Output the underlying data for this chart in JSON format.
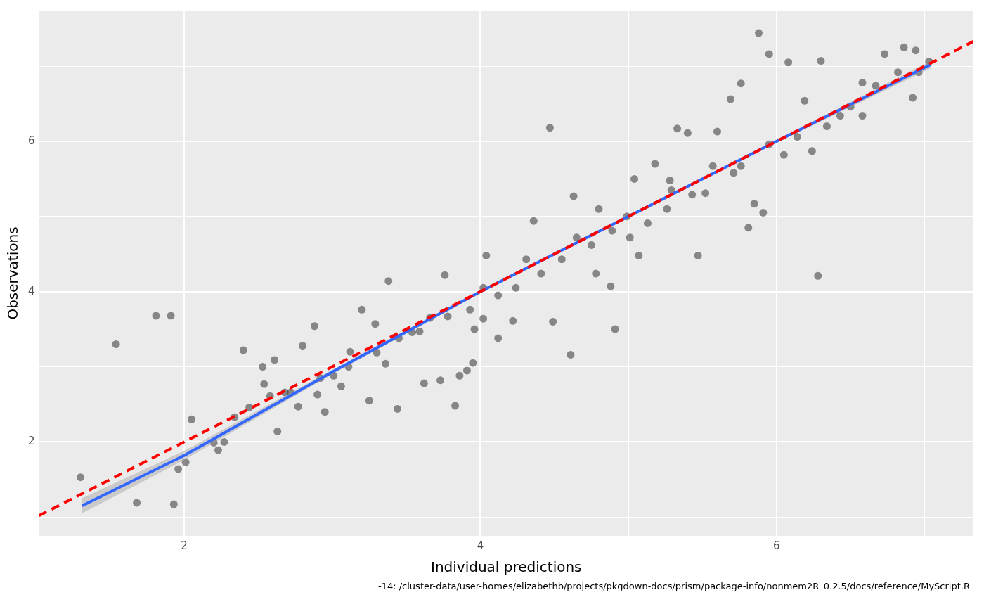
{
  "chart_data": {
    "type": "scatter",
    "xlabel": "Individual predictions",
    "ylabel": "Observations",
    "annotations": [
      "-14: /cluster-data/user-homes/elizabethb/projects/pkgdown-docs/prism/package-info/nonmem2R_0.2.5/docs/reference/MyScript.R"
    ],
    "xlim": [
      1.02,
      7.33
    ],
    "ylim": [
      0.75,
      7.74
    ],
    "xticks": [
      2,
      {
        "value": 3,
        "label": null
      },
      4,
      {
        "value": 5,
        "label": null
      },
      6,
      {
        "value": 7,
        "label": null
      }
    ],
    "yticks": [
      {
        "value": 1,
        "label": null
      },
      2,
      {
        "value": 3,
        "label": null
      },
      4,
      {
        "value": 5,
        "label": null
      },
      6,
      {
        "value": 7,
        "label": null
      }
    ],
    "grid": true,
    "legend": false,
    "series": [
      {
        "marker": "circle",
        "color": "#333333",
        "x": [
          1.3,
          1.54,
          1.81,
          1.91,
          1.68,
          1.93,
          1.96,
          2.01,
          2.05,
          2.2,
          2.23,
          2.27,
          2.4,
          2.44,
          2.53,
          2.54,
          2.61,
          2.63,
          2.68,
          2.77,
          2.8,
          2.88,
          2.9,
          2.95,
          3.01,
          3.06,
          3.12,
          3.2,
          3.25,
          3.29,
          3.36,
          3.38,
          3.44,
          3.54,
          3.62,
          3.66,
          3.73,
          3.76,
          3.83,
          3.86,
          3.91,
          3.95,
          3.96,
          4.02,
          4.04,
          4.12,
          4.22,
          4.36,
          4.47,
          4.49,
          4.61,
          4.63,
          4.78,
          4.88,
          4.91,
          5.01,
          5.04,
          5.07,
          5.18,
          5.29,
          5.33,
          5.4,
          5.47,
          5.52,
          5.6,
          5.69,
          5.76,
          5.81,
          5.85,
          5.88,
          5.91,
          5.95,
          6.08,
          6.28,
          6.3,
          6.5,
          6.73,
          6.86,
          6.94,
          7.03,
          6.92,
          6.82,
          6.58,
          6.34,
          6.24,
          6.14,
          6.05,
          5.76,
          5.57,
          5.43,
          5.26,
          5.13,
          4.89,
          4.75,
          4.55,
          4.41,
          4.24,
          4.12,
          3.93,
          3.78,
          3.59,
          3.45,
          3.3,
          3.11,
          2.92,
          2.72,
          2.58,
          2.34,
          6.67,
          6.43,
          5.95,
          5.71,
          5.28,
          4.99,
          4.65,
          4.31,
          4.02,
          4.8,
          6.96,
          6.19,
          6.58
        ],
        "values": [
          1.53,
          3.3,
          3.68,
          3.68,
          1.19,
          1.17,
          1.64,
          1.73,
          2.3,
          1.99,
          1.89,
          2.0,
          3.22,
          2.46,
          3.0,
          2.77,
          3.09,
          2.14,
          2.66,
          2.47,
          3.28,
          3.54,
          2.63,
          2.4,
          2.88,
          2.74,
          3.2,
          3.76,
          2.55,
          3.57,
          3.04,
          4.14,
          2.44,
          3.46,
          2.78,
          3.65,
          2.82,
          4.22,
          2.48,
          2.88,
          2.95,
          3.05,
          3.5,
          3.64,
          4.48,
          3.38,
          3.61,
          4.94,
          6.18,
          3.6,
          3.16,
          5.27,
          4.24,
          4.07,
          3.5,
          4.72,
          5.5,
          4.48,
          5.7,
          5.35,
          6.17,
          6.11,
          4.48,
          5.31,
          6.13,
          6.56,
          6.77,
          4.85,
          5.17,
          7.44,
          5.05,
          7.16,
          7.05,
          4.21,
          7.07,
          6.46,
          7.16,
          7.25,
          7.21,
          7.06,
          6.58,
          6.92,
          6.78,
          6.2,
          5.87,
          6.06,
          5.82,
          5.67,
          5.67,
          5.29,
          5.1,
          4.91,
          4.81,
          4.62,
          4.43,
          4.24,
          4.05,
          3.95,
          3.76,
          3.67,
          3.47,
          3.38,
          3.19,
          3.0,
          2.85,
          2.66,
          2.61,
          2.33,
          6.74,
          6.34,
          5.96,
          5.58,
          5.48,
          5.0,
          4.72,
          4.43,
          4.05,
          5.1,
          6.92,
          6.54,
          6.34
        ]
      },
      {
        "type": "line",
        "marker": "none",
        "color": "#ff0000",
        "line_style": "dashed",
        "x": [
          1.02,
          7.33
        ],
        "values": [
          1.02,
          7.33
        ]
      },
      {
        "type": "line",
        "marker": "none",
        "color": "#3366ff",
        "line_style": "solid",
        "x": [
          1.31,
          2,
          3,
          4,
          5,
          6,
          7.04
        ],
        "values": [
          1.15,
          1.82,
          2.93,
          4.0,
          5.0,
          6.0,
          7.02
        ],
        "lower": [
          1.05,
          1.76,
          2.9,
          3.98,
          4.98,
          5.98,
          6.97
        ],
        "upper": [
          1.25,
          1.88,
          2.96,
          4.02,
          5.02,
          6.02,
          7.07
        ]
      }
    ]
  }
}
